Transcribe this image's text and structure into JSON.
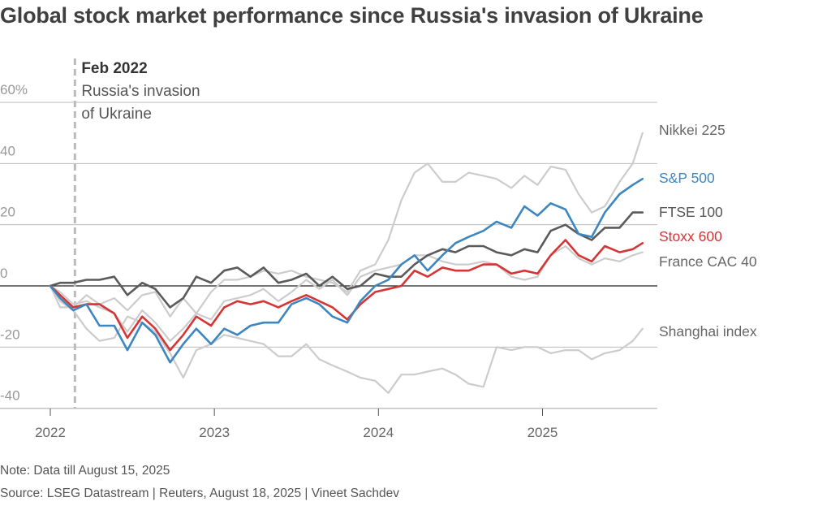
{
  "title": "Global stock market performance since Russia's invasion of Ukraine",
  "note": "Note: Data till August 15, 2025",
  "source": "Source: LSEG Datastream | Reuters, August 18, 2025 | Vineet Sachdev",
  "colors": {
    "sp500": "#3d86c0",
    "stoxx": "#d63535",
    "ftse": "#5a5a5a",
    "light": "#cccccc",
    "grid": "#bbbbbb",
    "zero": "#222222",
    "event": "#bbbbbb"
  },
  "chart_data": {
    "type": "line",
    "title": "Global stock market performance since Russia's invasion of Ukraine",
    "xlabel": "",
    "ylabel": "",
    "xlim": [
      2022.0,
      2025.7
    ],
    "ylim": [
      -42,
      62
    ],
    "x_ticks": [
      2022,
      2023,
      2024,
      2025
    ],
    "x_tick_labels": [
      "2022",
      "2023",
      "2024",
      "2025"
    ],
    "y_ticks": [
      60,
      40,
      20,
      0,
      -20,
      -40
    ],
    "y_tick_labels": [
      "60%",
      "40",
      "20",
      "0",
      "-20",
      "-40"
    ],
    "grid": "horizontal",
    "annotation": {
      "x": 2022.15,
      "title": "Feb 2022",
      "lines": [
        "Russia's invasion",
        "of Ukraine"
      ]
    },
    "x": [
      2022.0,
      2022.06,
      2022.14,
      2022.22,
      2022.3,
      2022.39,
      2022.47,
      2022.56,
      2022.64,
      2022.73,
      2022.81,
      2022.89,
      2022.98,
      2023.06,
      2023.14,
      2023.22,
      2023.3,
      2023.39,
      2023.47,
      2023.56,
      2023.64,
      2023.72,
      2023.81,
      2023.89,
      2023.98,
      2024.06,
      2024.14,
      2024.22,
      2024.3,
      2024.39,
      2024.47,
      2024.55,
      2024.64,
      2024.72,
      2024.81,
      2024.89,
      2024.97,
      2025.05,
      2025.14,
      2025.22,
      2025.3,
      2025.38,
      2025.47,
      2025.55,
      2025.61
    ],
    "series": [
      {
        "name": "Nikkei 225",
        "values": [
          0,
          -7,
          -7,
          -3,
          -6,
          -4,
          -8,
          -3,
          -2,
          -10,
          -4,
          -9,
          -2,
          2,
          2,
          3,
          5,
          4,
          5,
          3,
          2,
          1,
          -2,
          5,
          7,
          15,
          28,
          37,
          40,
          34,
          34,
          37,
          36,
          35,
          32,
          36,
          33,
          39,
          38,
          30,
          24,
          26,
          34,
          40,
          50
        ]
      },
      {
        "name": "S&P 500",
        "values": [
          0,
          -4,
          -8,
          -6,
          -13,
          -13,
          -21,
          -12,
          -16,
          -25,
          -19,
          -14,
          -19,
          -14,
          -16,
          -13,
          -12,
          -12,
          -6,
          -4,
          -6,
          -10,
          -12,
          -5,
          0,
          2,
          7,
          10,
          5,
          10,
          14,
          16,
          18,
          21,
          19,
          26,
          23,
          27,
          25,
          17,
          16,
          24,
          30,
          33,
          35
        ]
      },
      {
        "name": "FTSE 100",
        "values": [
          0,
          1,
          1,
          2,
          2,
          3,
          -3,
          1,
          -1,
          -7,
          -4,
          3,
          1,
          5,
          6,
          3,
          6,
          1,
          2,
          4,
          0,
          3,
          -1,
          0,
          4,
          3,
          3,
          7,
          10,
          12,
          11,
          13,
          13,
          11,
          10,
          12,
          11,
          18,
          20,
          17,
          15,
          19,
          19,
          24,
          24
        ]
      },
      {
        "name": "Stoxx 600",
        "values": [
          0,
          -3,
          -7,
          -6,
          -6,
          -9,
          -17,
          -10,
          -14,
          -21,
          -16,
          -10,
          -13,
          -7,
          -5,
          -6,
          -5,
          -7,
          -5,
          -3,
          -5,
          -7,
          -11,
          -6,
          -2,
          -1,
          0,
          5,
          3,
          6,
          5,
          5,
          7,
          7,
          4,
          5,
          4,
          10,
          15,
          10,
          8,
          13,
          11,
          12,
          14
        ]
      },
      {
        "name": "France CAC 40",
        "values": [
          0,
          -2,
          -6,
          -5,
          -7,
          -9,
          -15,
          -8,
          -12,
          -18,
          -14,
          -9,
          -11,
          -5,
          -4,
          -3,
          -1,
          -5,
          -2,
          2,
          -1,
          2,
          -3,
          3,
          5,
          6,
          7,
          10,
          10,
          8,
          7,
          7,
          8,
          7,
          3,
          2,
          3,
          10,
          13,
          9,
          7,
          9,
          8,
          10,
          11
        ]
      },
      {
        "name": "Shanghai index",
        "values": [
          0,
          -5,
          -8,
          -14,
          -18,
          -17,
          -10,
          -12,
          -15,
          -22,
          -30,
          -21,
          -19,
          -16,
          -17,
          -18,
          -19,
          -23,
          -23,
          -19,
          -24,
          -26,
          -28,
          -30,
          -31,
          -35,
          -29,
          -29,
          -28,
          -27,
          -29,
          -32,
          -33,
          -20,
          -21,
          -20,
          -20,
          -22,
          -21,
          -21,
          -24,
          -22,
          -21,
          -18,
          -14
        ]
      }
    ]
  }
}
